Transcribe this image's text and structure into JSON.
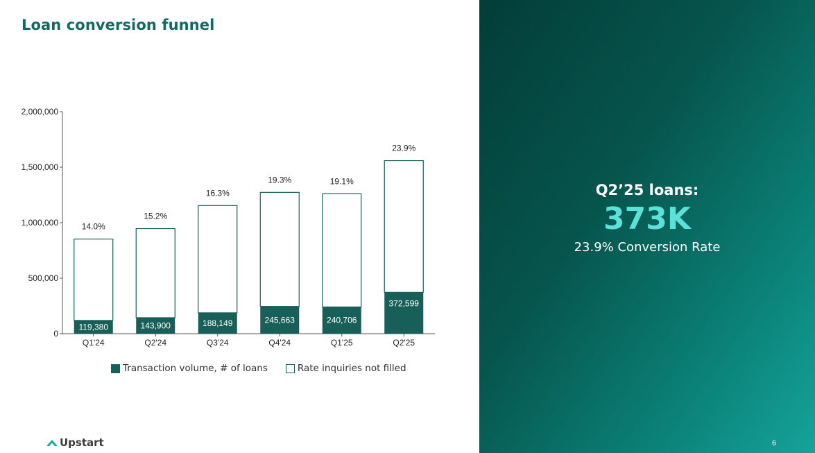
{
  "slide": {
    "title": "Loan conversion funnel",
    "page_number": "6",
    "logo_text": "Upstart"
  },
  "kpi": {
    "label": "Q2’25 loans:",
    "value": "373K",
    "subtitle": "23.9% Conversion Rate"
  },
  "colors": {
    "accent": "#0f6a61",
    "bar_fill": "#175f58",
    "kpi_value": "#5ce1d8"
  },
  "chart_data": {
    "type": "bar",
    "stacked": true,
    "categories": [
      "Q1'24",
      "Q2'24",
      "Q3'24",
      "Q4'24",
      "Q1'25",
      "Q2'25"
    ],
    "series": [
      {
        "name": "Transaction volume, # of loans",
        "values": [
          119380,
          143900,
          188149,
          245663,
          240706,
          372599
        ],
        "value_labels": [
          "119,380",
          "143,900",
          "188,149",
          "245,663",
          "240,706",
          "372,599"
        ]
      },
      {
        "name": "Rate inquiries not filled",
        "values": [
          733334,
          802816,
          966117,
          1027197,
          1019525,
          1186418
        ]
      }
    ],
    "top_labels": [
      "14.0%",
      "15.2%",
      "16.3%",
      "19.3%",
      "19.1%",
      "23.9%"
    ],
    "ylim": [
      0,
      2000000
    ],
    "yticks": [
      0,
      500000,
      1000000,
      1500000,
      2000000
    ],
    "ytick_labels": [
      "0",
      "500,000",
      "1,000,000",
      "1,500,000",
      "2,000,000"
    ],
    "grid": false,
    "legend_position": "bottom"
  }
}
